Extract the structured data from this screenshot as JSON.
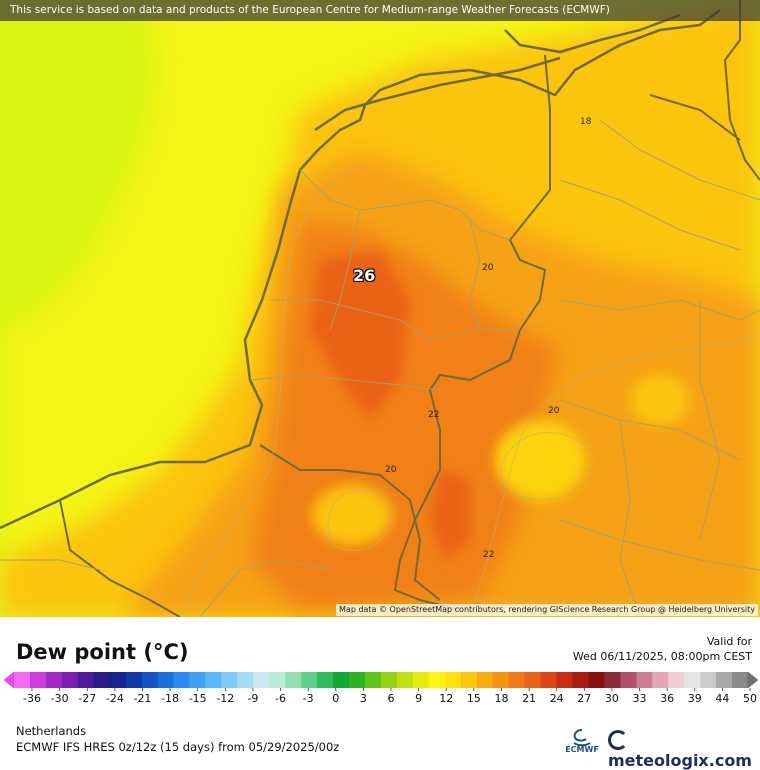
{
  "banner": "This service is based on data and products of the European Centre for Medium-range Weather Forecasts (ECMWF)",
  "attribution": "Map data © OpenStreetMap contributors, rendering GIScience Research Group @ Heidelberg University",
  "map": {
    "peak_label": "26",
    "contour_labels": [
      "18",
      "20",
      "20",
      "22",
      "20",
      "22"
    ]
  },
  "title": "Dew point (°C)",
  "valid": {
    "label": "Valid for",
    "datetime": "Wed 06/11/2025, 08:00pm CEST"
  },
  "legend": {
    "ticks": [
      "-36",
      "-30",
      "-27",
      "-24",
      "-21",
      "-18",
      "-15",
      "-12",
      "-9",
      "-6",
      "-3",
      "0",
      "3",
      "6",
      "9",
      "12",
      "15",
      "18",
      "21",
      "24",
      "27",
      "30",
      "33",
      "36",
      "39",
      "44",
      "50"
    ],
    "colors": [
      "#f56af5",
      "#d13ee0",
      "#a42bc9",
      "#7b1fb3",
      "#4c1a9a",
      "#2a1c8a",
      "#15238f",
      "#1036a8",
      "#1551c8",
      "#1b6de0",
      "#2a8af0",
      "#3fa3f5",
      "#5bb9f7",
      "#7fcbf7",
      "#a6dbf5",
      "#c8e9f3",
      "#b8ecd6",
      "#8fdfb2",
      "#5ccf88",
      "#2fbb5a",
      "#13a836",
      "#2eb321",
      "#62c41a",
      "#95d316",
      "#c3e014",
      "#e6eb12",
      "#fbf514",
      "#fde20f",
      "#fbc70e",
      "#f8ad0d",
      "#f59410",
      "#f17a14",
      "#e86117",
      "#dd4518",
      "#c72c15",
      "#a91b10",
      "#8a100b",
      "#8e2a3a",
      "#b0506a",
      "#cc7b93",
      "#e2a6b6",
      "#f2cdd5",
      "#e6e6e6",
      "#cccccc",
      "#a9a9a9",
      "#8a8a8a"
    ],
    "low_color": "#ff3cff",
    "high_color": "#6f6f6f"
  },
  "footer": {
    "region": "Netherlands",
    "model": "ECMWF IFS HRES 0z/12z (15 days) from 05/29/2025/00z",
    "ecmwf_logo": "ECMWF",
    "brand": "meteologix.com"
  },
  "colors": {
    "far_sea": "#d9f514",
    "sea": "#f4f416",
    "land_low": "#fbc40e",
    "land_mid": "#f6a212",
    "land_high": "#f18016",
    "land_peak": "#ea6219",
    "border": "#6e6a3a"
  }
}
